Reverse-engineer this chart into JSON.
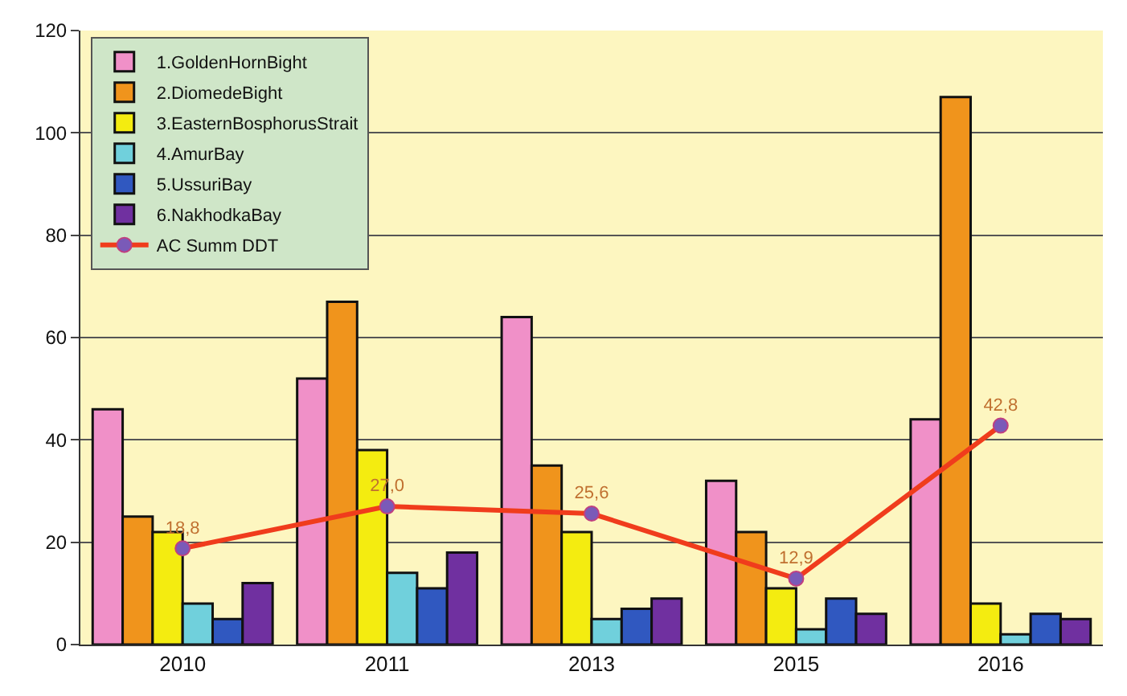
{
  "chart_data": {
    "type": "bar",
    "categories": [
      "2010",
      "2011",
      "2013",
      "2015",
      "2016"
    ],
    "ylim": [
      0,
      120
    ],
    "yticks": [
      0,
      20,
      40,
      60,
      80,
      100,
      120
    ],
    "grid": "y",
    "legend": "top left",
    "series": [
      {
        "name": "1.GoldenHornBight",
        "color": "#f090c8",
        "values": [
          46,
          52,
          64,
          32,
          44
        ]
      },
      {
        "name": "2.DiomedeBight",
        "color": "#f0941c",
        "values": [
          25,
          67,
          35,
          22,
          107
        ]
      },
      {
        "name": "3.EasternBosphorusStrait",
        "color": "#f4ec10",
        "values": [
          22,
          38,
          22,
          11,
          8
        ]
      },
      {
        "name": "4.AmurBay",
        "color": "#70d0dc",
        "values": [
          8,
          14,
          5,
          3,
          2
        ]
      },
      {
        "name": "5.UssuriBay",
        "color": "#3058c0",
        "values": [
          5,
          11,
          7,
          9,
          6
        ]
      },
      {
        "name": "6.NakhodkaBay",
        "color": "#7030a0",
        "values": [
          12,
          18,
          9,
          6,
          5
        ]
      },
      {
        "name": "AC Summ DDT",
        "type": "line",
        "color": "#f03c1c",
        "marker": "circle",
        "values": [
          18.8,
          27.0,
          25.6,
          12.9,
          42.8
        ],
        "value_labels": [
          "18,8",
          "27,0",
          "25,6",
          "12,9",
          "42,8"
        ]
      }
    ]
  }
}
